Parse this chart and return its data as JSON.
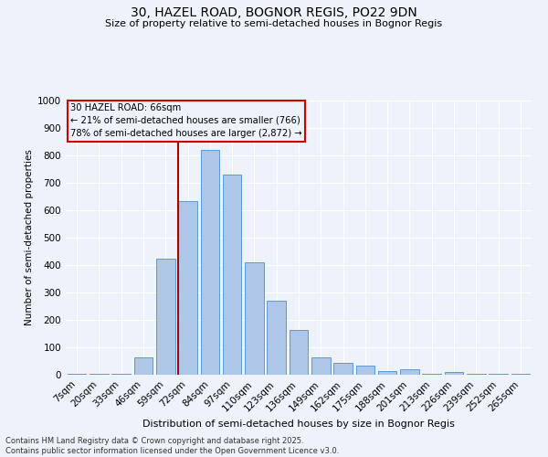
{
  "title1": "30, HAZEL ROAD, BOGNOR REGIS, PO22 9DN",
  "title2": "Size of property relative to semi-detached houses in Bognor Regis",
  "xlabel": "Distribution of semi-detached houses by size in Bognor Regis",
  "ylabel": "Number of semi-detached properties",
  "categories": [
    "7sqm",
    "20sqm",
    "33sqm",
    "46sqm",
    "59sqm",
    "72sqm",
    "84sqm",
    "97sqm",
    "110sqm",
    "123sqm",
    "136sqm",
    "149sqm",
    "162sqm",
    "175sqm",
    "188sqm",
    "201sqm",
    "213sqm",
    "226sqm",
    "239sqm",
    "252sqm",
    "265sqm"
  ],
  "values": [
    5,
    5,
    5,
    65,
    425,
    635,
    820,
    730,
    410,
    270,
    165,
    65,
    45,
    35,
    15,
    20,
    5,
    10,
    5,
    3,
    3
  ],
  "bar_color": "#aec6e8",
  "bar_edge_color": "#5b9bd5",
  "property_label": "30 HAZEL ROAD: 66sqm",
  "annotation_line1": "← 21% of semi-detached houses are smaller (766)",
  "annotation_line2": "78% of semi-detached houses are larger (2,872) →",
  "vline_index": 5,
  "vline_color": "#aa0000",
  "box_edge_color": "#cc0000",
  "ylim": [
    0,
    1000
  ],
  "yticks": [
    0,
    100,
    200,
    300,
    400,
    500,
    600,
    700,
    800,
    900,
    1000
  ],
  "bg_color": "#eef2fa",
  "grid_color": "#ffffff",
  "footer1": "Contains HM Land Registry data © Crown copyright and database right 2025.",
  "footer2": "Contains public sector information licensed under the Open Government Licence v3.0."
}
